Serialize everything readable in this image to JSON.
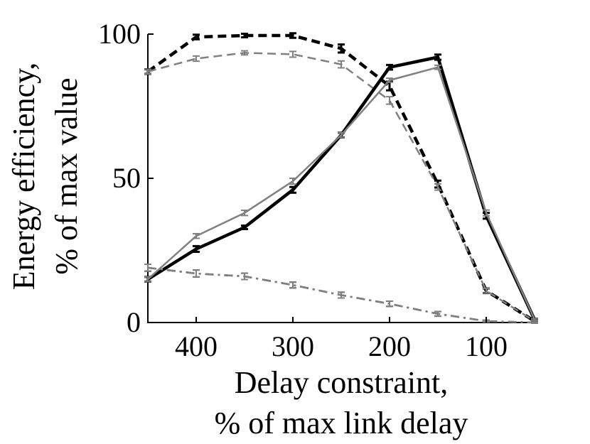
{
  "chart_data": {
    "type": "line",
    "title": "",
    "xlabel": [
      "Delay constraint,",
      "% of max link delay"
    ],
    "ylabel": [
      "Energy efficiency,",
      "% of max value"
    ],
    "x_reversed": true,
    "xlim": [
      50,
      450
    ],
    "ylim": [
      0,
      100
    ],
    "xticks": [
      400,
      300,
      200,
      100
    ],
    "xtick_labels": [
      "400",
      "300",
      "200",
      "100"
    ],
    "yticks": [
      0,
      50,
      100
    ],
    "ytick_labels": [
      "0",
      "50",
      "100"
    ],
    "grid": false,
    "legend": "none",
    "x": [
      450,
      400,
      350,
      300,
      250,
      200,
      150,
      100,
      50
    ],
    "series": [
      {
        "color": "#000000",
        "style": "dashed",
        "width": "thick",
        "values": [
          87,
          99,
          99.5,
          99.5,
          95,
          82,
          48,
          11,
          0.5
        ],
        "errors": [
          0.8,
          0.8,
          0.6,
          0.8,
          1.4,
          1.5,
          1.2,
          0.8,
          0.3
        ]
      },
      {
        "color": "#808080",
        "style": "dashed",
        "width": "thin",
        "values": [
          87,
          91.5,
          93.5,
          93,
          89.5,
          77,
          47,
          11,
          0.5
        ],
        "errors": [
          0.8,
          0.9,
          0.7,
          1.0,
          1.2,
          1.3,
          1.1,
          0.8,
          0.3
        ]
      },
      {
        "color": "#000000",
        "style": "solid",
        "width": "thick",
        "values": [
          15,
          25.5,
          33,
          46,
          65,
          88.5,
          92,
          37,
          1
        ],
        "errors": [
          0.8,
          1.0,
          0.6,
          1.0,
          0.8,
          0.8,
          0.9,
          1.0,
          0.3
        ]
      },
      {
        "color": "#808080",
        "style": "solid",
        "width": "thin",
        "values": [
          15,
          30,
          38,
          49,
          65,
          84,
          88.5,
          38,
          1
        ],
        "errors": [
          0.8,
          0.8,
          0.9,
          1.0,
          0.8,
          0.7,
          0.7,
          1.0,
          0.3
        ]
      },
      {
        "color": "#000000",
        "style": "dashdot",
        "width": "thin",
        "values": [
          19,
          17,
          16,
          13,
          9.5,
          6.5,
          3,
          0.5,
          0
        ],
        "errors": [
          1.2,
          1.2,
          1.1,
          1.0,
          1.0,
          0.9,
          0.8,
          0.3,
          0.2
        ]
      },
      {
        "color": "#808080",
        "style": "dashdot",
        "width": "thin",
        "values": [
          19,
          17,
          16,
          13,
          9.5,
          6.5,
          3,
          0.5,
          0
        ],
        "errors": [
          1.2,
          1.2,
          1.1,
          1.0,
          1.0,
          0.9,
          0.8,
          0.3,
          0.2
        ]
      }
    ]
  }
}
